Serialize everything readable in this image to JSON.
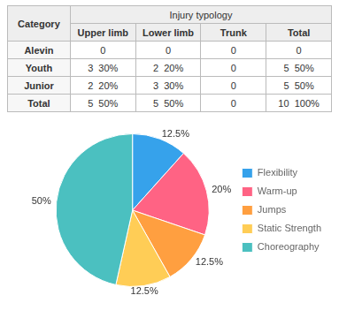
{
  "chart_data": [
    {
      "type": "table",
      "title": "Injury typology",
      "row_title": "Category",
      "columns": [
        "Upper limb",
        "Lower limb",
        "Trunk",
        "Total"
      ],
      "categories": [
        "Alevin",
        "Youth",
        "Junior",
        "Total"
      ],
      "cells": [
        [
          "0",
          "0",
          "0",
          "0"
        ],
        [
          "3  30%",
          "2  20%",
          "0",
          "5  50%"
        ],
        [
          "2  20%",
          "3  30%",
          "0",
          "5  50%"
        ],
        [
          "5  50%",
          "5  50%",
          "0",
          "10  100%"
        ]
      ]
    },
    {
      "type": "pie",
      "categories": [
        "Flexibility",
        "Warm-up",
        "Jumps",
        "Static Strength",
        "Choreography"
      ],
      "values": [
        12.5,
        20.0,
        12.5,
        12.5,
        50.0
      ],
      "value_labels": [
        "12.5%",
        "20%",
        "12.5%",
        "12.5%",
        "50%"
      ],
      "data_labels": true,
      "legend": "right"
    }
  ]
}
